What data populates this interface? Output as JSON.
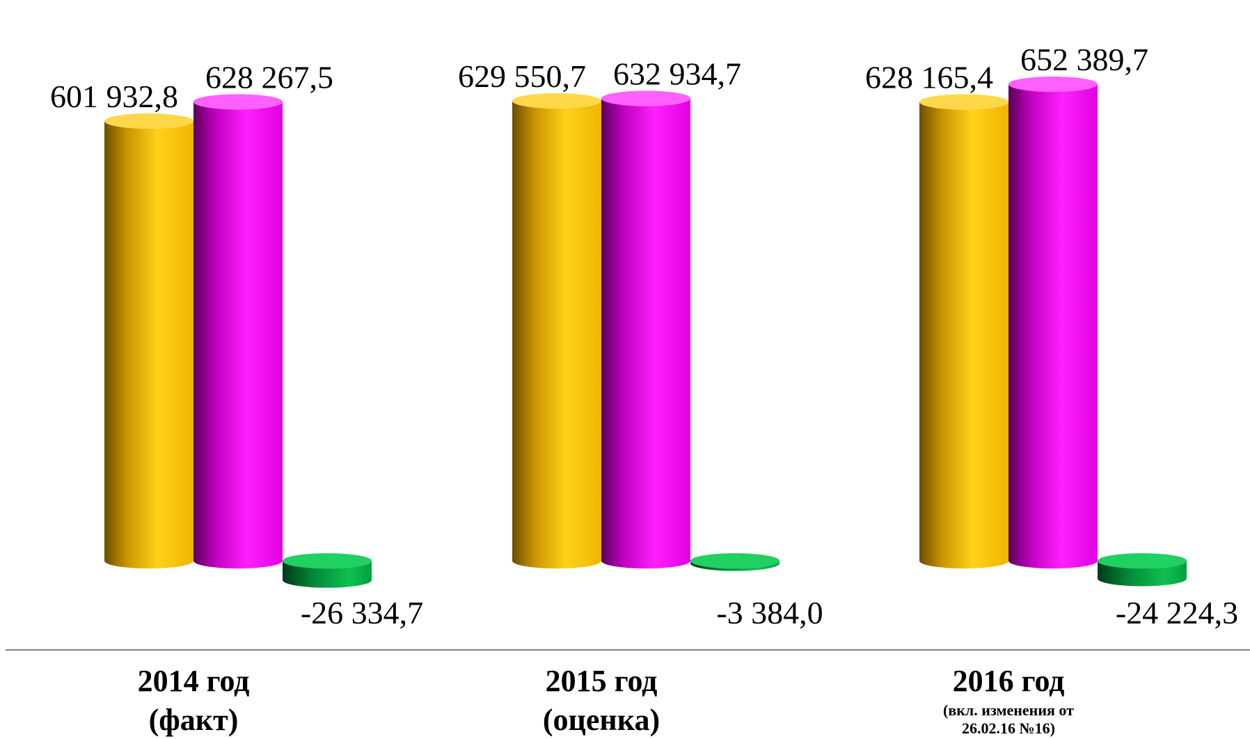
{
  "chart_data": {
    "type": "bar",
    "title": "",
    "xlabel": "",
    "ylabel": "",
    "categories": [
      {
        "label": "2014 год",
        "sub": "(факт)",
        "note": []
      },
      {
        "label": "2015 год",
        "sub": "(оценка)",
        "note": []
      },
      {
        "label": "2016 год",
        "sub": "",
        "note": [
          "(вкл. изменения от",
          "26.02.16 №16)"
        ]
      }
    ],
    "series": [
      {
        "values": [
          601932.8,
          629550.7,
          628165.4
        ],
        "labels": [
          "601 932,8",
          "629 550,7",
          "628 165,4"
        ],
        "color": "#f5c000"
      },
      {
        "values": [
          628267.5,
          632934.7,
          652389.7
        ],
        "labels": [
          "628 267,5",
          "632 934,7",
          "652 389,7"
        ],
        "color": "#e600e6"
      },
      {
        "values": [
          -26334.7,
          -3384.0,
          -24224.3
        ],
        "labels": [
          "-26 334,7",
          "-3 384,0",
          "-24 224,3"
        ],
        "color": "#00a040"
      }
    ],
    "grid": false,
    "legend": "none"
  }
}
